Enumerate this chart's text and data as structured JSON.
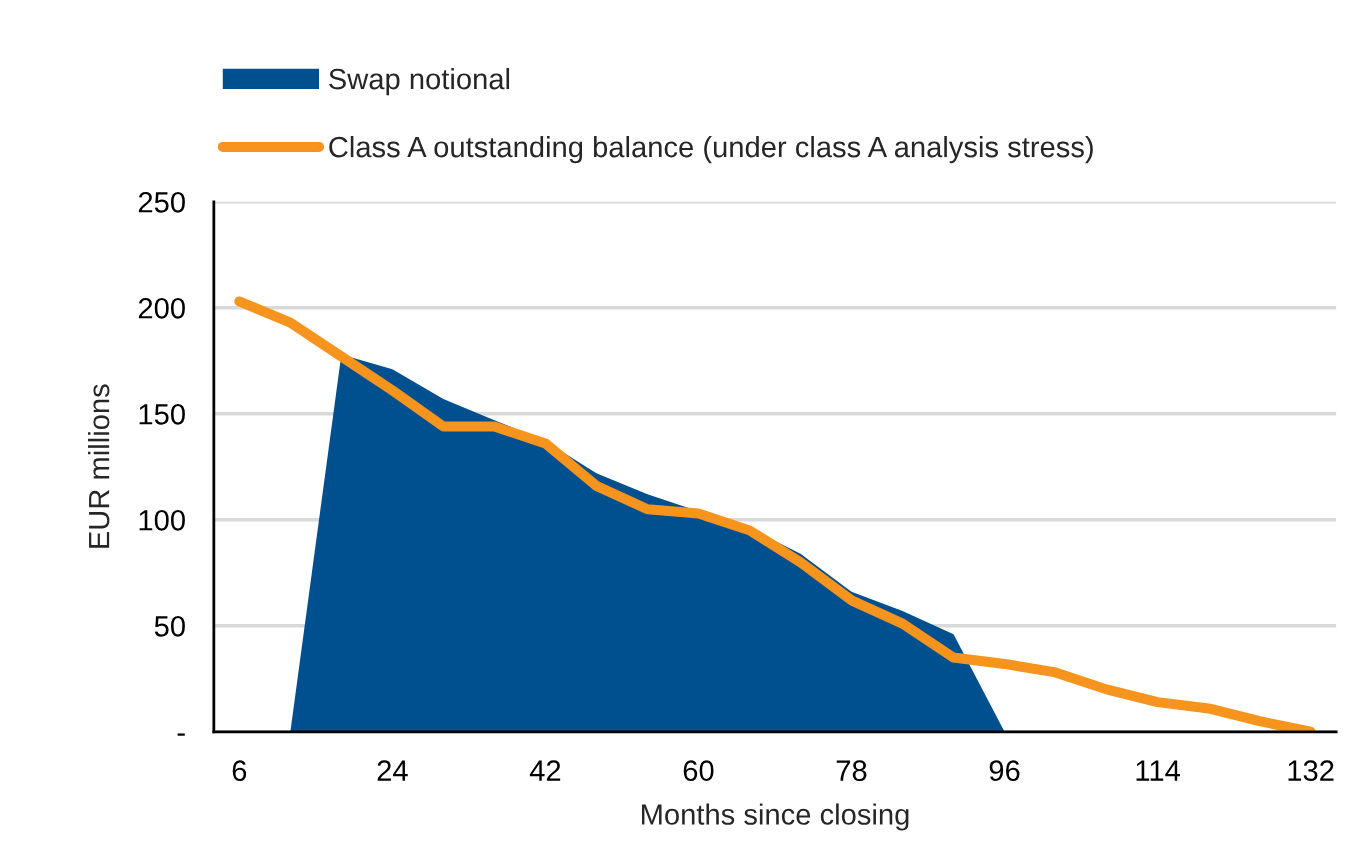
{
  "chart_data": {
    "type": "line",
    "xlabel": "Months since closing",
    "ylabel": "EUR millions",
    "x": [
      6,
      12,
      18,
      24,
      30,
      36,
      42,
      48,
      54,
      60,
      66,
      72,
      78,
      84,
      90,
      96,
      102,
      108,
      114,
      120,
      126,
      132
    ],
    "xlim": [
      3,
      135
    ],
    "xticks": [
      6,
      24,
      42,
      60,
      78,
      96,
      114,
      132
    ],
    "ylim": [
      0,
      250
    ],
    "yticks": [
      {
        "value": 0,
        "label": "-"
      },
      50,
      100,
      150,
      200,
      250
    ],
    "grid": "y",
    "legend": "top",
    "series": [
      {
        "name": "Swap notional",
        "type": "area",
        "color": "#004f8f",
        "values": [
          0,
          0,
          178,
          171,
          157,
          147,
          137,
          122,
          112,
          104,
          96,
          84,
          66,
          57,
          46,
          0,
          0,
          0,
          0,
          0,
          0,
          0
        ]
      },
      {
        "name": "Class A outstanding balance (under class A analysis stress)",
        "color": "#f7941d",
        "values": [
          203,
          193,
          177,
          161,
          144,
          144,
          136,
          116,
          105,
          103,
          95,
          80,
          62,
          51,
          35,
          32,
          28,
          20,
          14,
          11,
          5,
          0
        ]
      }
    ]
  }
}
